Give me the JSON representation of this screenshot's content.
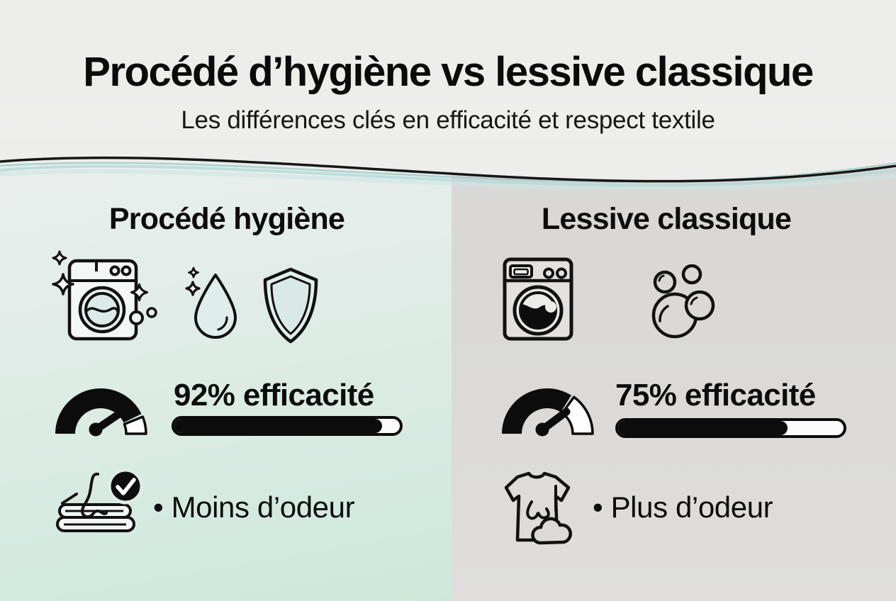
{
  "header": {
    "title": "Procédé d’hygiène vs lessive classique",
    "subtitle": "Les différences clés en efficacité et respect textile"
  },
  "left": {
    "name": "Procédé hygiène",
    "icons": [
      "sparkling-washing-machine-icon",
      "water-drop-icon",
      "shield-icon"
    ],
    "efficiency_label": "92% efficacité",
    "efficiency_percent": 92,
    "point": "• Moins d’odeur",
    "point_icon": "fresh-towel-check-icon",
    "gauge_icon": "speedometer-icon"
  },
  "right": {
    "name": "Lessive classique",
    "icons": [
      "washing-machine-icon",
      "soap-bubbles-icon"
    ],
    "efficiency_label": "75% efficacité",
    "efficiency_percent": 75,
    "point": "• Plus d’odeur",
    "point_icon": "smelly-tshirt-icon",
    "gauge_icon": "speedometer-icon"
  },
  "colors": {
    "ink": "#0d0d0d",
    "top_background": "#ededeb",
    "left_panel_mint": "#cde8da",
    "right_panel_gray": "#d9d8d6",
    "wave_teal": "#b5dbd8"
  }
}
